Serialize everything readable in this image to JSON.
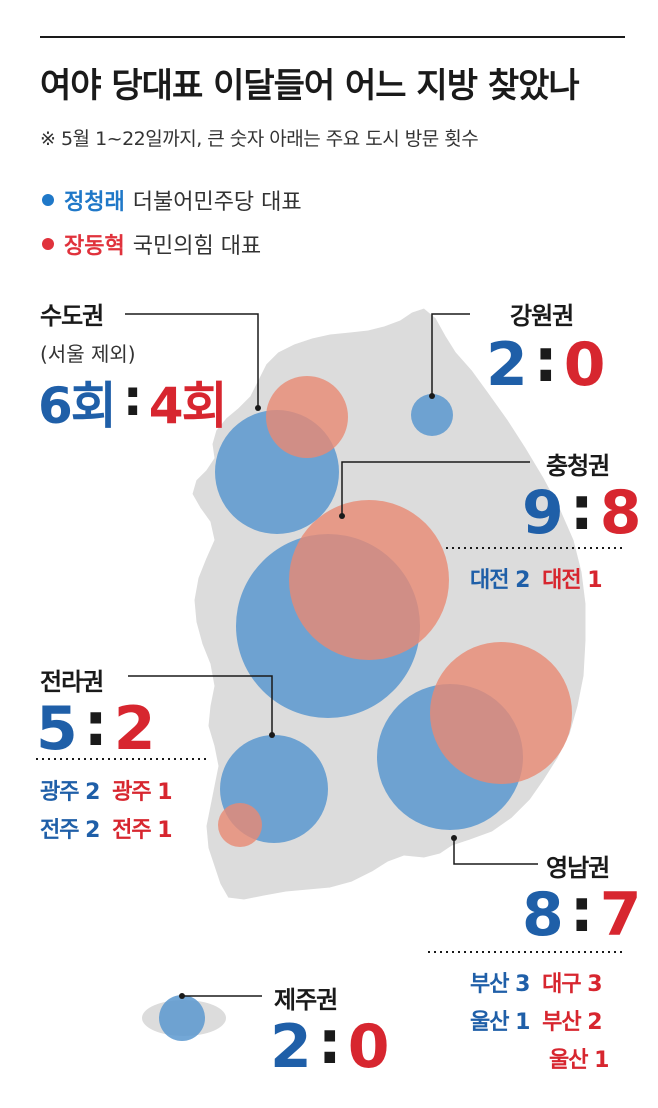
{
  "title": "여야 당대표 이달들어 어느 지방 찾았나",
  "subtitle": "※ 5월 1~22일까지, 큰 숫자 아래는 주요 도시 방문 횟수",
  "legend": [
    {
      "name": "정청래",
      "role": "더불어민주당 대표",
      "color": "#1f78c8"
    },
    {
      "name": "장동혁",
      "role": "국민의힘 대표",
      "color": "#e0323c"
    }
  ],
  "colors": {
    "blue_text": "#1f5fa8",
    "red_text": "#d7262f",
    "blue_circle": "#5b98cf",
    "red_circle": "#e88a73",
    "map_fill": "#dcdcdc"
  },
  "regions": {
    "sudogwon": {
      "name": "수도권",
      "note": "(서울 제외)",
      "blue": "6회",
      "red": "4회",
      "blue_value": 6,
      "red_value": 4
    },
    "gangwon": {
      "name": "강원권",
      "blue": "2",
      "red": "0",
      "blue_value": 2,
      "red_value": 0
    },
    "chungcheong": {
      "name": "충청권",
      "blue": "9",
      "red": "8",
      "blue_value": 9,
      "red_value": 8,
      "cities_blue": [
        "대전 2"
      ],
      "cities_red": [
        "대전 1"
      ]
    },
    "jeolla": {
      "name": "전라권",
      "blue": "5",
      "red": "2",
      "blue_value": 5,
      "red_value": 2,
      "cities_blue": [
        "광주 2",
        "전주 2"
      ],
      "cities_red": [
        "광주 1",
        "전주 1"
      ]
    },
    "yeongnam": {
      "name": "영남권",
      "blue": "8",
      "red": "7",
      "blue_value": 8,
      "red_value": 7,
      "cities_blue": [
        "부산 3",
        "울산 1"
      ],
      "cities_red": [
        "대구 3",
        "부산 2",
        "울산 1"
      ]
    },
    "jeju": {
      "name": "제주권",
      "blue": "2",
      "red": "0",
      "blue_value": 2,
      "red_value": 0
    }
  }
}
